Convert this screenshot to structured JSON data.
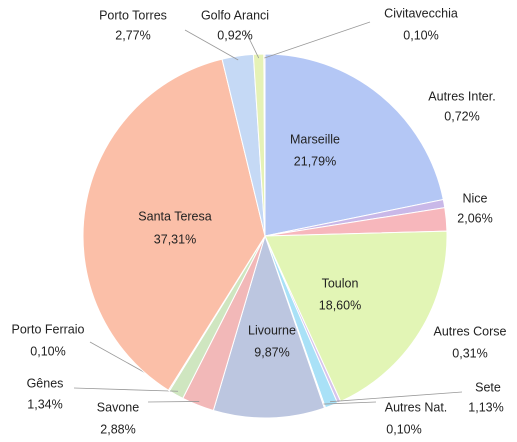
{
  "chart_data": {
    "type": "pie",
    "categories": [
      "Marseille",
      "Autres Inter.",
      "Nice",
      "Toulon",
      "Autres Corse",
      "Sete",
      "Autres Nat.",
      "Livourne",
      "Savone",
      "Gênes",
      "Porto Ferraio",
      "Santa Teresa",
      "Porto Torres",
      "Golfo Aranci",
      "Civitavecchia"
    ],
    "values": [
      21.79,
      0.72,
      2.06,
      18.6,
      0.31,
      1.13,
      0.1,
      9.87,
      2.88,
      1.34,
      0.1,
      37.31,
      2.77,
      0.92,
      0.1
    ],
    "value_labels": [
      "21,79%",
      "0,72%",
      "2,06%",
      "18,60%",
      "0,31%",
      "1,13%",
      "0,10%",
      "9,87%",
      "2,88%",
      "1,34%",
      "0,10%",
      "37,31%",
      "2,77%",
      "0,92%",
      "0,10%"
    ],
    "colors": [
      "#b4c7f5",
      "#c9b8e8",
      "#f7b7bc",
      "#e2f5b5",
      "#d6c4ec",
      "#a9e1f7",
      "#f7c9d6",
      "#bcc6e0",
      "#f2b8b8",
      "#cfe6c0",
      "#d9d9d9",
      "#fbbfa8",
      "#c5d9f5",
      "#e6f2b6",
      "#fbd0a8"
    ]
  }
}
